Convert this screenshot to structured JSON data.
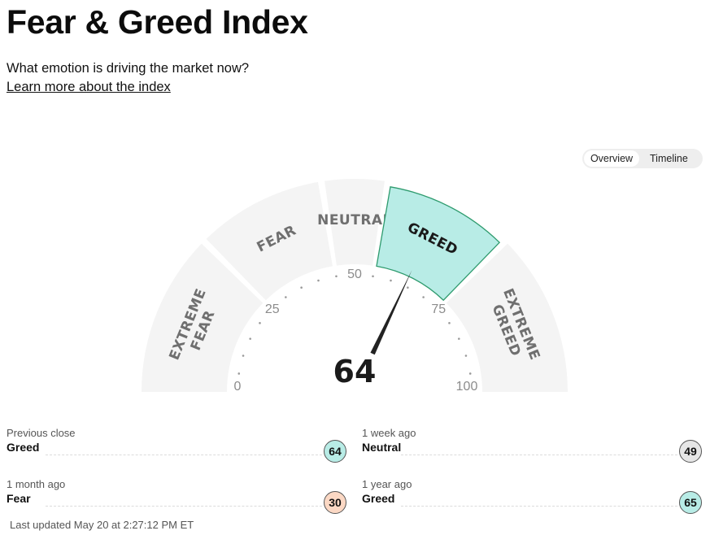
{
  "page": {
    "title": "Fear & Greed Index",
    "subtitle": "What emotion is driving the market now?",
    "learn_more": "Learn more about the index",
    "last_updated": "Last updated May 20 at 2:27:12 PM ET"
  },
  "view_toggle": {
    "overview": "Overview",
    "timeline": "Timeline",
    "selected": "Overview"
  },
  "gauge": {
    "score": 64,
    "score_text": "64",
    "segments": [
      {
        "lines": [
          "EXTREME",
          "FEAR"
        ],
        "range": [
          0,
          25
        ]
      },
      {
        "lines": [
          "FEAR"
        ],
        "range": [
          25,
          45
        ]
      },
      {
        "lines": [
          "NEUTRAL"
        ],
        "range": [
          45,
          55
        ]
      },
      {
        "lines": [
          "GREED"
        ],
        "range": [
          55,
          75
        ]
      },
      {
        "lines": [
          "EXTREME",
          "GREED"
        ],
        "range": [
          75,
          100
        ]
      }
    ],
    "active_segment": 3,
    "tick_labels": [
      "0",
      "25",
      "50",
      "75",
      "100"
    ],
    "colors": {
      "segment": "#f4f4f4",
      "active_fill": "#b8ece6",
      "active_stroke": "#2e9b6e",
      "needle": "#222222"
    }
  },
  "history": [
    {
      "label": "Previous close",
      "rating": "Greed",
      "value": "64",
      "color": "#b8ece6"
    },
    {
      "label": "1 week ago",
      "rating": "Neutral",
      "value": "49",
      "color": "#e6e6e6"
    },
    {
      "label": "1 month ago",
      "rating": "Fear",
      "value": "30",
      "color": "#fbd8c4"
    },
    {
      "label": "1 year ago",
      "rating": "Greed",
      "value": "65",
      "color": "#b8ece6"
    }
  ]
}
